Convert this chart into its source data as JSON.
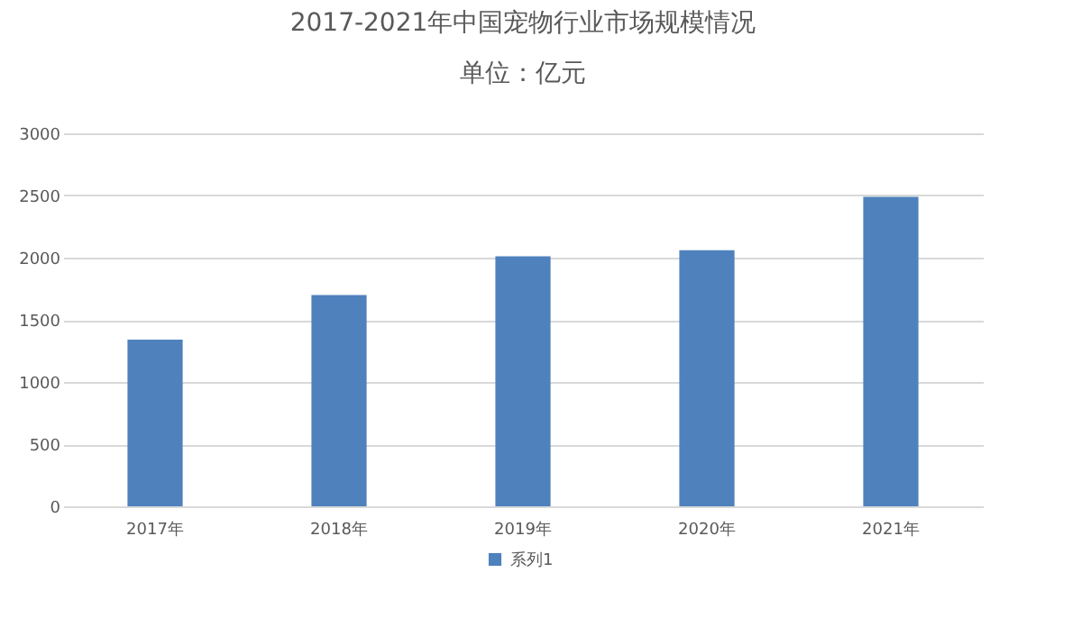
{
  "chart_data": {
    "type": "bar",
    "title": "2017-2021年中国宠物行业市场规模情况",
    "subtitle": "单位：亿元",
    "categories": [
      "2017年",
      "2018年",
      "2019年",
      "2020年",
      "2021年"
    ],
    "series": [
      {
        "name": "系列1",
        "color": "#4f81bd",
        "values": [
          1340,
          1700,
          2010,
          2060,
          2490
        ]
      }
    ],
    "ylim": [
      0,
      3000
    ],
    "yticks": [
      0,
      500,
      1000,
      1500,
      2000,
      2500,
      3000
    ],
    "grid": "y",
    "legend": "bottom"
  }
}
